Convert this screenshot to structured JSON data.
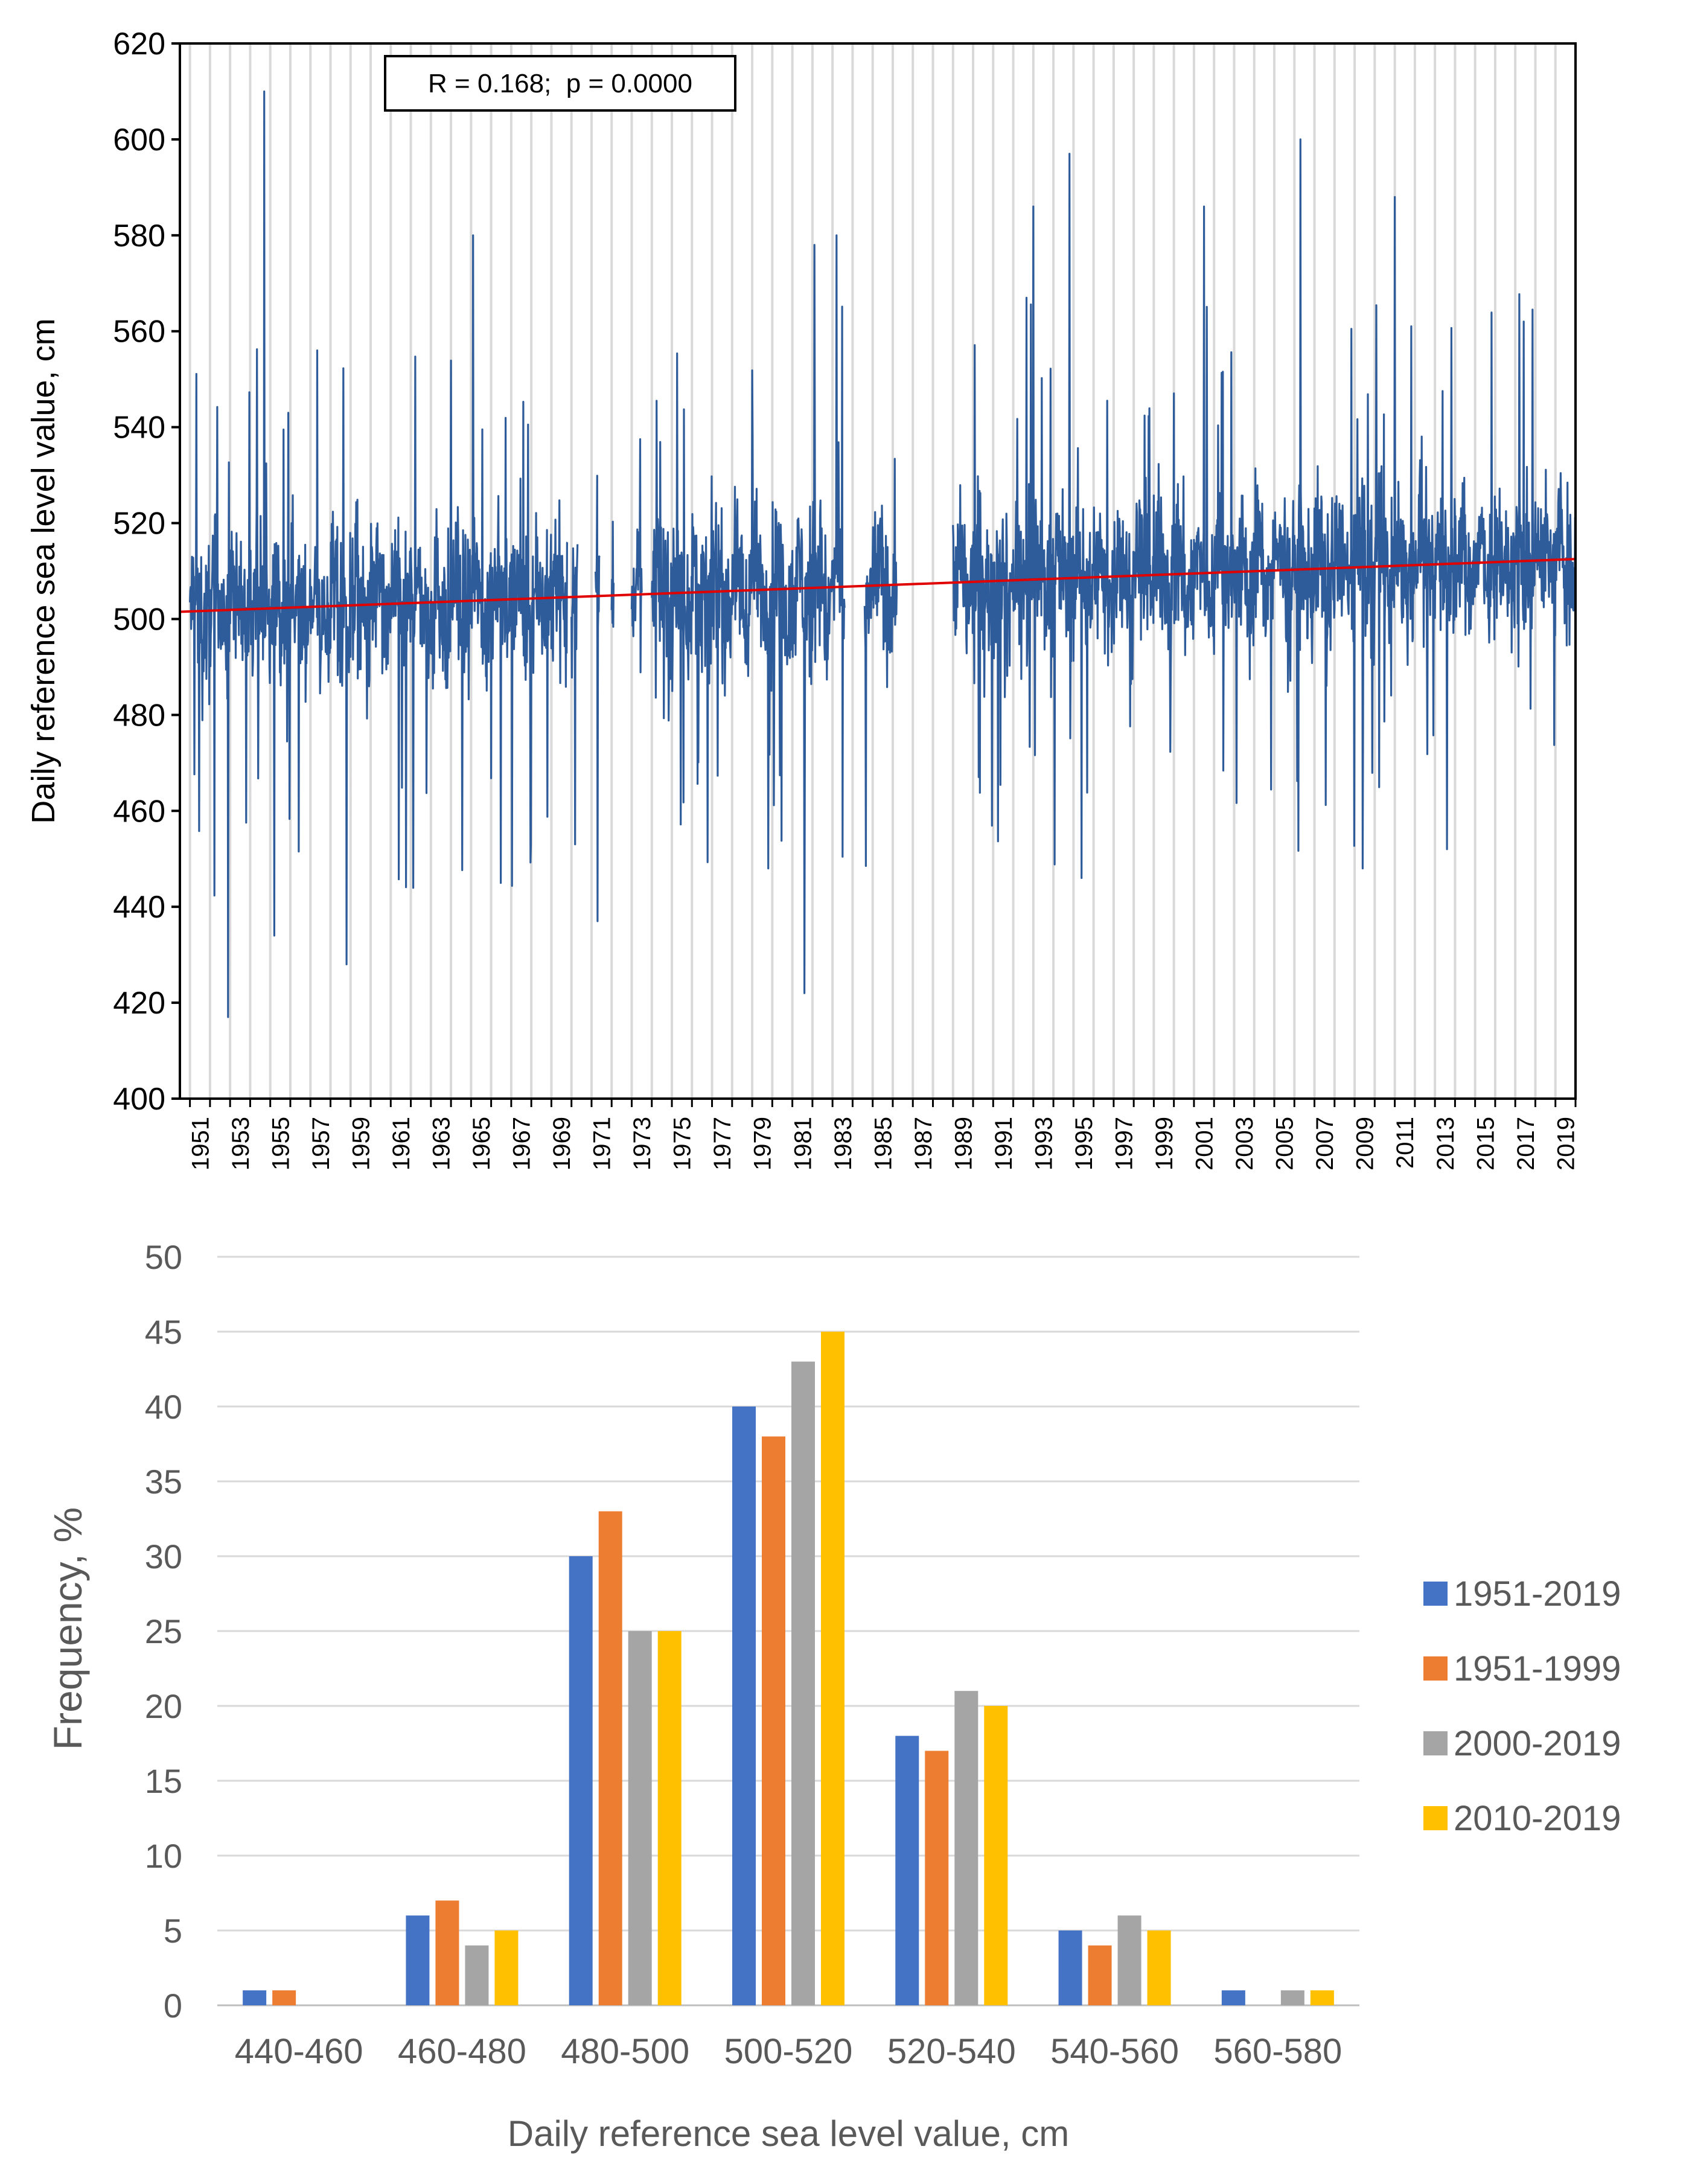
{
  "chart_data": [
    {
      "type": "line",
      "title": "",
      "xlabel": "",
      "ylabel": "Daily reference sea level value, cm",
      "ylim": [
        400,
        620
      ],
      "y_ticks": [
        "400",
        "420",
        "440",
        "460",
        "480",
        "500",
        "520",
        "540",
        "560",
        "580",
        "600",
        "620"
      ],
      "x_range": [
        1950.5,
        2020
      ],
      "x_tick_labels": [
        "1951",
        "1953",
        "1955",
        "1957",
        "1959",
        "1961",
        "1963",
        "1965",
        "1967",
        "1969",
        "1971",
        "1973",
        "1975",
        "1977",
        "1979",
        "1981",
        "1983",
        "1985",
        "1987",
        "1989",
        "1991",
        "1993",
        "1995",
        "1997",
        "1999",
        "2001",
        "2003",
        "2005",
        "2007",
        "2009",
        "2011",
        "2013",
        "2015",
        "2017",
        "2019"
      ],
      "annotation": "R = 0.168;  p = 0.0000",
      "grid": "vertical-yearly",
      "series": [
        {
          "name": "Daily reference sea level",
          "color": "#2E5B99",
          "segments": [
            [
              1951.0,
              1969.8
            ],
            [
              1970.0,
              1970.3
            ],
            [
              1971.2,
              1971.4
            ],
            [
              1972.0,
              1972.1
            ],
            [
              1973.0,
              1973.5
            ],
            [
              1974.0,
              1983.6
            ],
            [
              1984.6,
              1986.2
            ],
            [
              1989.0,
              2020.0
            ]
          ],
          "mean": 505,
          "amplitude": 22,
          "extremes": [
            {
              "x": 1952.9,
              "y": 417
            },
            {
              "x": 1954.7,
              "y": 610
            },
            {
              "x": 1958.8,
              "y": 428
            },
            {
              "x": 1971.3,
              "y": 437
            },
            {
              "x": 1981.6,
              "y": 422
            },
            {
              "x": 1994.8,
              "y": 597
            },
            {
              "x": 2006.3,
              "y": 600
            },
            {
              "x": 2011.0,
              "y": 588
            },
            {
              "x": 1995.4,
              "y": 446
            },
            {
              "x": 2009.4,
              "y": 448
            },
            {
              "x": 2013.6,
              "y": 452
            },
            {
              "x": 1993.0,
              "y": 586
            },
            {
              "x": 2001.5,
              "y": 586
            },
            {
              "x": 1965.1,
              "y": 580
            },
            {
              "x": 1982.1,
              "y": 578
            },
            {
              "x": 1983.2,
              "y": 580
            },
            {
              "x": 1979.8,
              "y": 448
            },
            {
              "x": 1955.2,
              "y": 434
            }
          ]
        },
        {
          "name": "Linear trend",
          "color": "#E00000",
          "x": [
            1950.5,
            2020
          ],
          "y": [
            501.5,
            512.5
          ]
        }
      ]
    },
    {
      "type": "bar",
      "title": "",
      "xlabel": "Daily reference sea level value, cm",
      "ylabel": "Frequency, %",
      "ylim": [
        0,
        50
      ],
      "y_ticks": [
        "0",
        "5",
        "10",
        "15",
        "20",
        "25",
        "30",
        "35",
        "40",
        "45",
        "50"
      ],
      "categories": [
        "440-460",
        "460-480",
        "480-500",
        "500-520",
        "520-540",
        "540-560",
        "560-580"
      ],
      "legend_position": "right",
      "series": [
        {
          "name": "1951-2019",
          "color": "#4472C4",
          "values": [
            1,
            6,
            30,
            40,
            18,
            5,
            1
          ]
        },
        {
          "name": "1951-1999",
          "color": "#ED7D31",
          "values": [
            1,
            7,
            33,
            38,
            17,
            4,
            0
          ]
        },
        {
          "name": "2000-2019",
          "color": "#A5A5A5",
          "values": [
            0,
            4,
            25,
            43,
            21,
            6,
            1
          ]
        },
        {
          "name": "2010-2019",
          "color": "#FFC000",
          "values": [
            0,
            5,
            25,
            45,
            20,
            5,
            1
          ]
        }
      ]
    }
  ]
}
